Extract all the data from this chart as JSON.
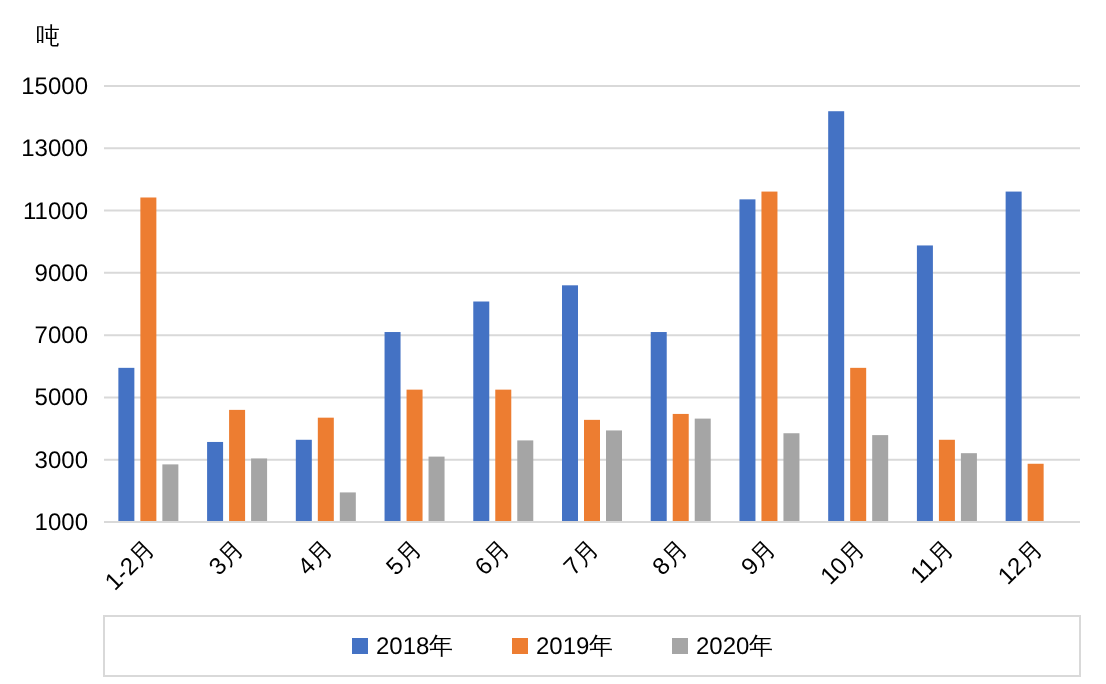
{
  "chart_data": {
    "type": "bar",
    "ylabel": "吨",
    "categories": [
      "1-2月",
      "3月",
      "4月",
      "5月",
      "6月",
      "7月",
      "8月",
      "9月",
      "10月",
      "11月",
      "12月"
    ],
    "series": [
      {
        "name": "2018年",
        "color": "#4472c4",
        "values": [
          5950,
          3570,
          3640,
          7100,
          8080,
          8600,
          7100,
          11360,
          14190,
          9880,
          11610
        ]
      },
      {
        "name": "2019年",
        "color": "#ed7d31",
        "values": [
          11420,
          4600,
          4350,
          5250,
          5250,
          4280,
          4470,
          11610,
          5950,
          3640,
          2870
        ]
      },
      {
        "name": "2020年",
        "color": "#a5a5a5",
        "values": [
          2850,
          3040,
          1950,
          3100,
          3620,
          3940,
          4320,
          3850,
          3790,
          3210,
          null
        ]
      }
    ],
    "ylim": [
      1000,
      15000
    ],
    "yticks": [
      1000,
      3000,
      5000,
      7000,
      9000,
      11000,
      13000,
      15000
    ],
    "grid": "y",
    "legend": "bottom"
  }
}
